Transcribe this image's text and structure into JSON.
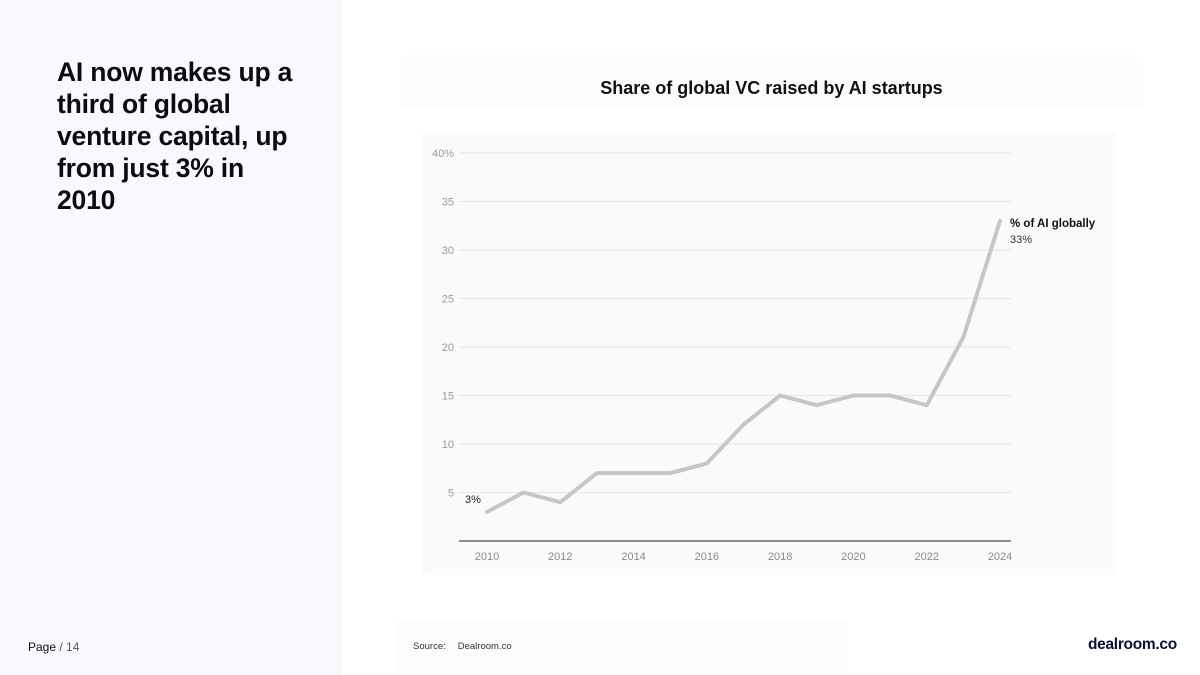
{
  "headline": "AI now makes up a third of global venture capital, up from just 3% in 2010",
  "page": {
    "label": "Page",
    "separator": " / ",
    "number": "14"
  },
  "source": {
    "label": "Source:",
    "name": "Dealroom.co"
  },
  "brand": {
    "logo_text": "dealroom.co"
  },
  "chart_data": {
    "type": "line",
    "title": "Share of global VC raised by AI startups",
    "xlabel": "",
    "ylabel": "",
    "x": [
      2010,
      2011,
      2012,
      2013,
      2014,
      2015,
      2016,
      2017,
      2018,
      2019,
      2020,
      2021,
      2022,
      2023,
      2024
    ],
    "x_ticks": [
      "2010",
      "2012",
      "2014",
      "2016",
      "2018",
      "2020",
      "2022",
      "2024"
    ],
    "y_ticks": [
      "5",
      "10",
      "15",
      "20",
      "25",
      "30",
      "35",
      "40%"
    ],
    "ylim": [
      0,
      40
    ],
    "series": [
      {
        "name": "% of AI globally",
        "values": [
          3,
          5,
          4,
          7,
          7,
          7,
          8,
          12,
          15,
          14,
          15,
          15,
          14,
          21,
          33
        ],
        "color": "#c6c6c6",
        "end_label": "33%",
        "start_label": "3%"
      }
    ],
    "grid": true,
    "legend": "end-of-line label"
  }
}
